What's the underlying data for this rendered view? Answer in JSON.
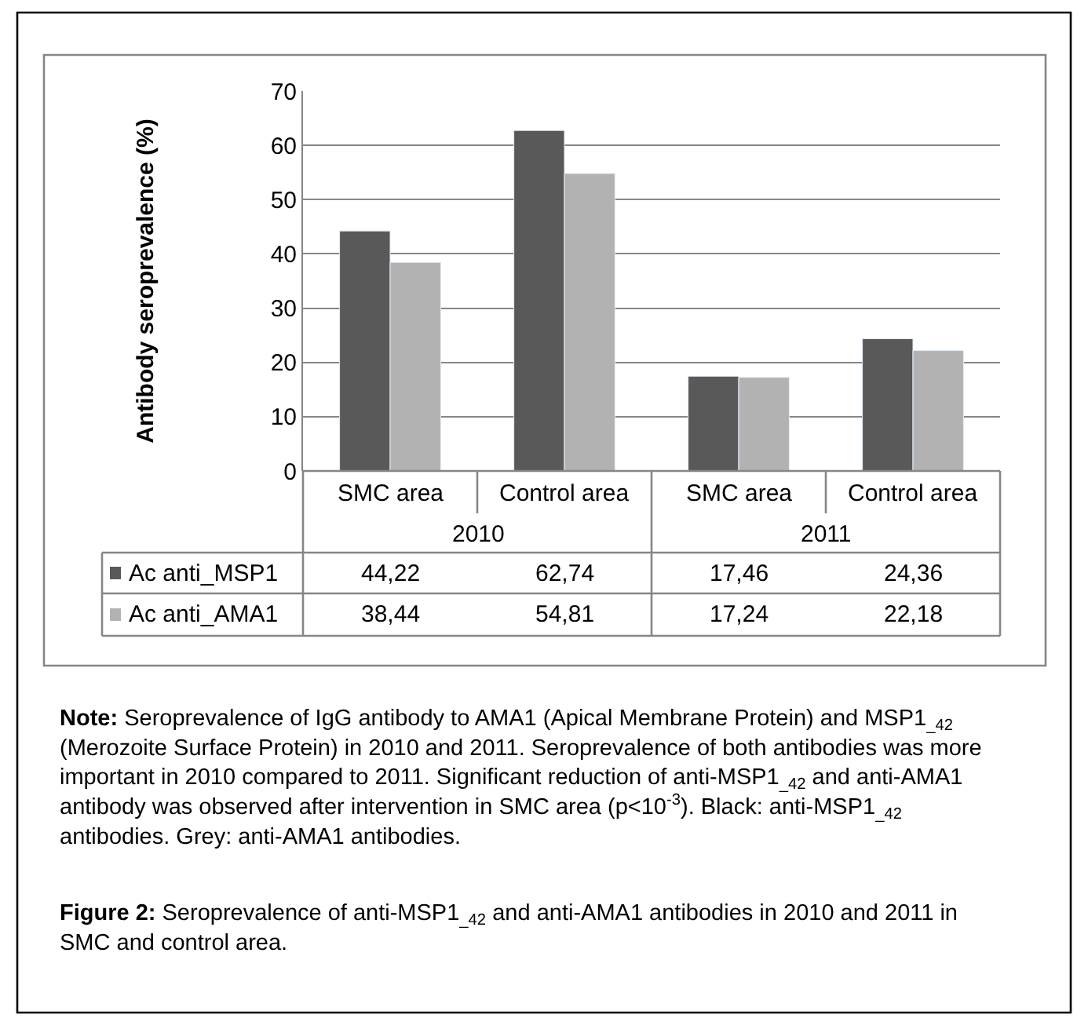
{
  "chart_data": {
    "type": "bar",
    "ylabel": "Antibody seroprevalence (%)",
    "categories": [
      "SMC area",
      "Control area",
      "SMC area",
      "Control area"
    ],
    "series": [
      {
        "name": "Ac anti_MSP1",
        "color": "#595959",
        "values": [
          44.22,
          62.74,
          17.46,
          24.36
        ],
        "value_labels": [
          "44,22",
          "62,74",
          "17,46",
          "24,36"
        ]
      },
      {
        "name": "Ac anti_AMA1",
        "color": "#b2b2b2",
        "values": [
          38.44,
          54.81,
          17.24,
          22.18
        ],
        "value_labels": [
          "38,44",
          "54,81",
          "17,24",
          "22,18"
        ]
      }
    ],
    "legend": "bottom left",
    "ylim": [
      0,
      70
    ],
    "yticks": [
      0,
      10,
      20,
      30,
      40,
      50,
      60,
      70
    ],
    "grid": "y",
    "annotations": [
      "2010",
      "2011",
      "Note: Seroprevalence of IgG antibody to AMA1 (Apical Membrane Protein) and MSP1$_{_42}$ (Merozoite Surface Protein) in 2010 and 2011. Seroprevalence of both antibodies was more important in 2010 compared to 2011. Significant reduction of anti-MSP1$_{_42}$ and anti-AMA1 antibody was observed after intervention in SMC area (p<10$^{-3}$). Black: anti-MSP1$_{_42}$ antibodies. Grey: anti-AMA1 antibodies.",
      "Figure 2: Seroprevalence of anti-MSP1$_{_42}$ and anti-AMA1 antibodies in 2010 and 2011 in SMC and control area."
    ]
  }
}
